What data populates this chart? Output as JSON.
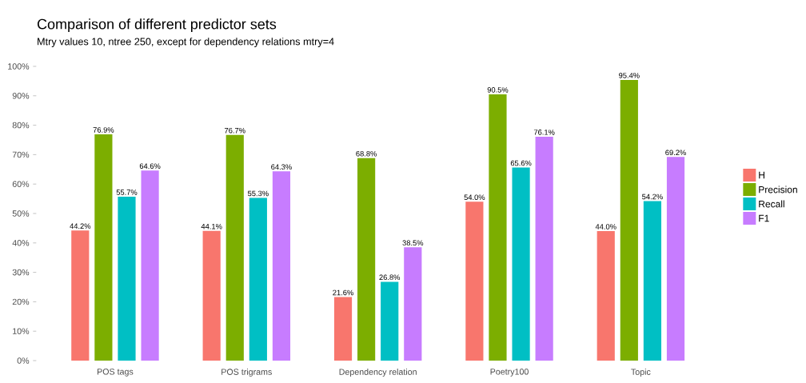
{
  "chart_data": {
    "type": "bar",
    "title": "Comparison of different predictor sets",
    "subtitle": "Mtry values 10, ntree 250, except for dependency relations mtry=4",
    "categories": [
      "POS tags",
      "POS trigrams",
      "Dependency relation",
      "Poetry100",
      "Topic"
    ],
    "series": [
      {
        "name": "H",
        "color": "#f8766d",
        "values": [
          44.2,
          44.1,
          21.6,
          54.0,
          44.0
        ],
        "value_labels": [
          "44.2%",
          "44.1%",
          "21.6%",
          "54.0%",
          "44.0%"
        ]
      },
      {
        "name": "Precision",
        "color": "#7cae00",
        "values": [
          76.9,
          76.7,
          68.8,
          90.5,
          95.4
        ],
        "value_labels": [
          "76.9%",
          "76.7%",
          "68.8%",
          "90.5%",
          "95.4%"
        ]
      },
      {
        "name": "Recall",
        "color": "#00bfc4",
        "values": [
          55.7,
          55.3,
          26.8,
          65.6,
          54.2
        ],
        "value_labels": [
          "55.7%",
          "55.3%",
          "26.8%",
          "65.6%",
          "54.2%"
        ]
      },
      {
        "name": "F1",
        "color": "#c77cff",
        "values": [
          64.6,
          64.3,
          38.5,
          76.1,
          69.2
        ],
        "value_labels": [
          "64.6%",
          "64.3%",
          "38.5%",
          "76.1%",
          "69.2%"
        ]
      }
    ],
    "ylim": [
      0,
      100
    ],
    "yticks": [
      {
        "value": 0,
        "label": "0%"
      },
      {
        "value": 10,
        "label": "10%"
      },
      {
        "value": 20,
        "label": "20%"
      },
      {
        "value": 30,
        "label": "30%"
      },
      {
        "value": 40,
        "label": "40%"
      },
      {
        "value": 50,
        "label": "50%"
      },
      {
        "value": 60,
        "label": "60%"
      },
      {
        "value": 70,
        "label": "70%"
      },
      {
        "value": 80,
        "label": "80%"
      },
      {
        "value": 90,
        "label": "90%"
      },
      {
        "value": 100,
        "label": "100%"
      }
    ],
    "legend": "right"
  }
}
